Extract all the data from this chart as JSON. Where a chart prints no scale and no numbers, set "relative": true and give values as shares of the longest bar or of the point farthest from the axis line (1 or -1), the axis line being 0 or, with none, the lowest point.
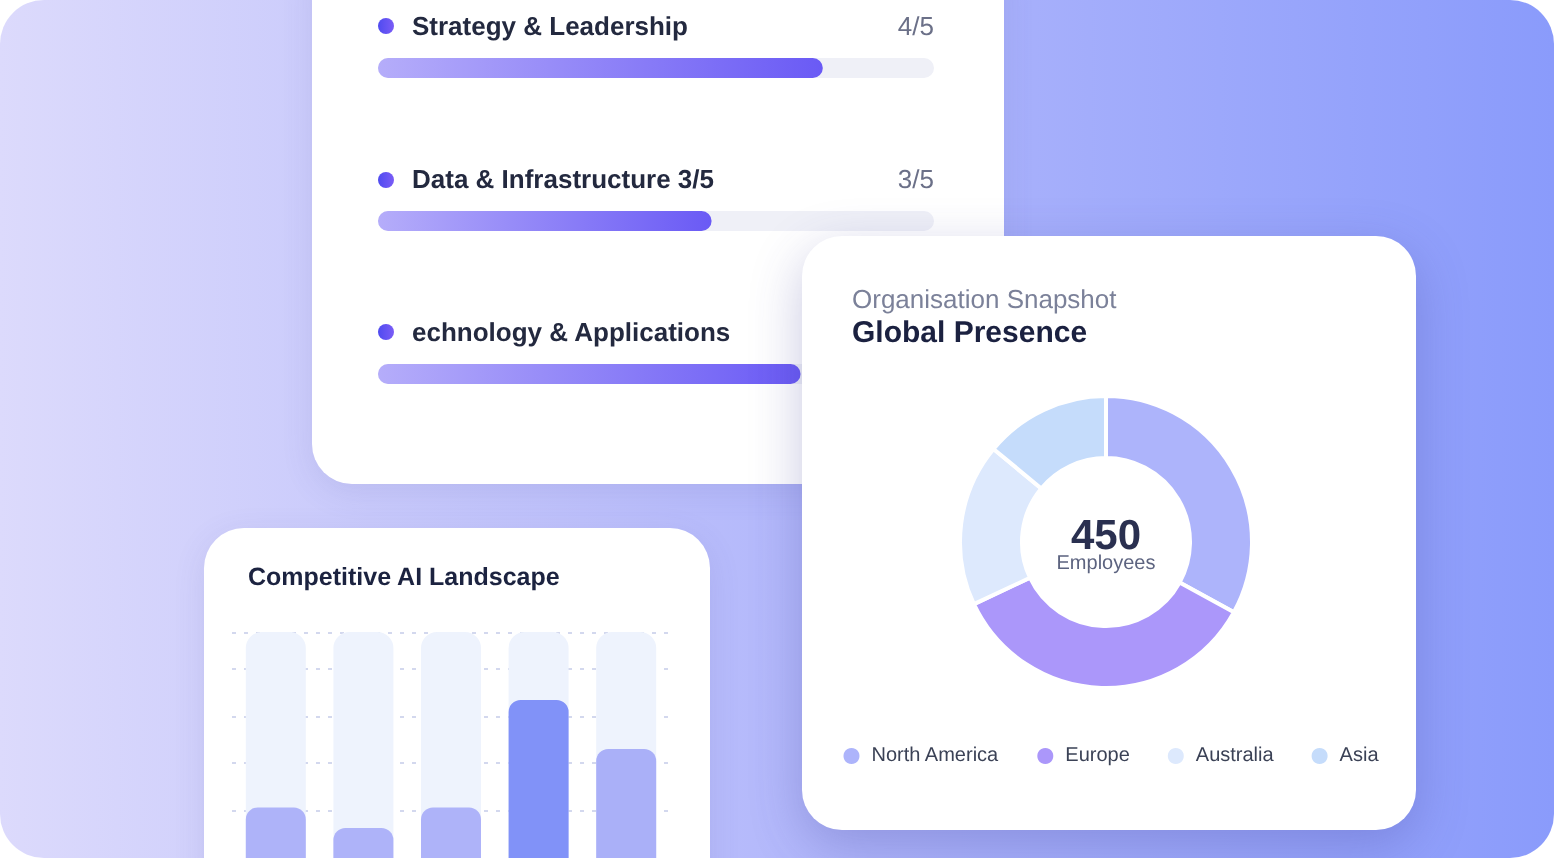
{
  "chart_data": [
    {
      "type": "bar",
      "orientation": "horizontal",
      "categories": [
        "Strategy & Leadership",
        "Data & Infrastructure 3/5",
        "echnology & Applications"
      ],
      "values": [
        0.8,
        0.6,
        0.76
      ],
      "value_labels": [
        "4/5",
        "3/5",
        null
      ],
      "color": "#6a5af5",
      "xlim": [
        0,
        1
      ],
      "tick_labels": "y"
    },
    {
      "type": "donut",
      "title": "Global Presence",
      "subtitle": "Organisation Snapshot",
      "categories": [
        "North America",
        "Europe",
        "Australia",
        "Asia"
      ],
      "values": [
        33,
        35,
        18,
        14
      ],
      "colors": [
        "#adb4fb",
        "#ab97fa",
        "#dde9fd",
        "#c5dcfb"
      ],
      "legend": "bottom",
      "annotations": [
        "450",
        "Employees"
      ]
    },
    {
      "type": "bar",
      "title": "Competitive AI Landscape",
      "categories": [
        null,
        null,
        null,
        null,
        null
      ],
      "values": [
        0.32,
        0.19,
        0.32,
        1,
        0.69
      ],
      "colors": [
        "#aeb3f9",
        "#aeb3f9",
        "#aeb3f9",
        "#8192f8",
        "#aab0f8"
      ],
      "relative": true,
      "grid": "y",
      "tick_labels": false
    }
  ]
}
